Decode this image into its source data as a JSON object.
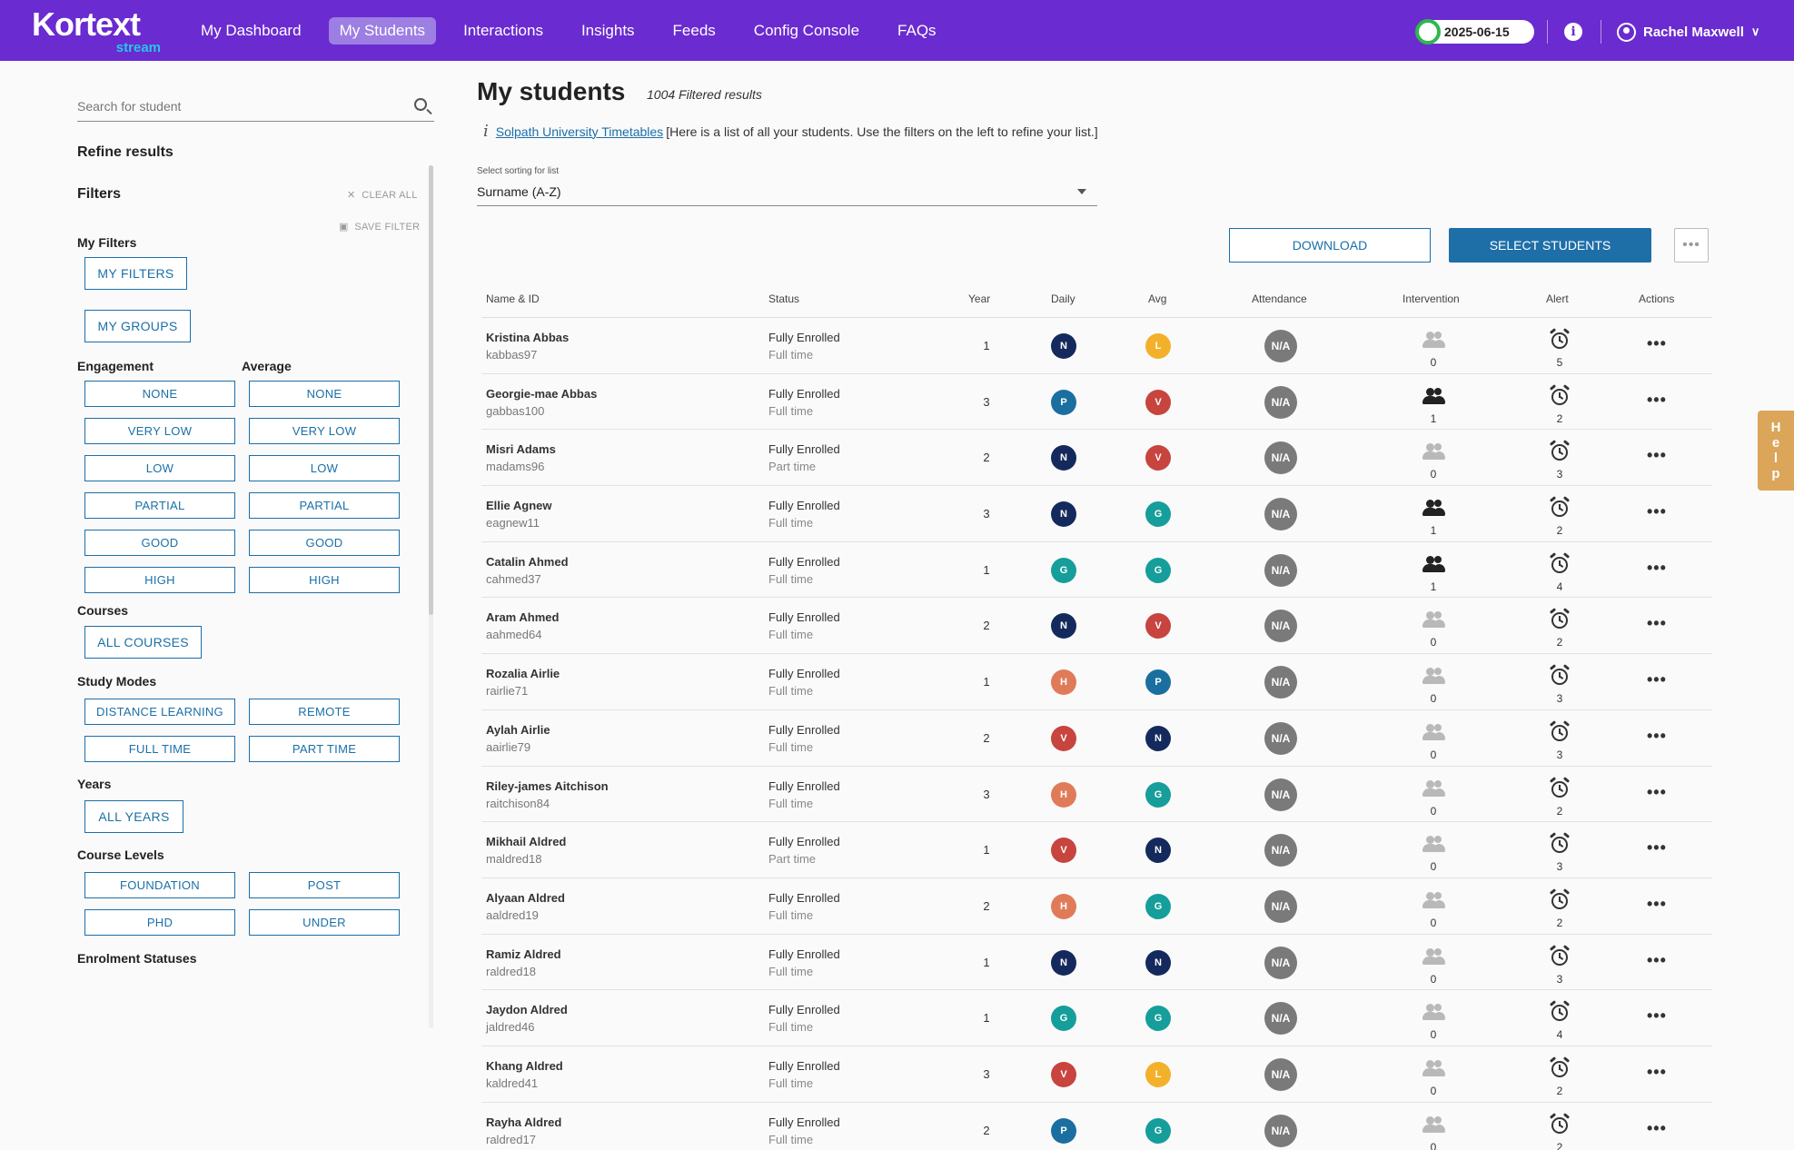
{
  "brand": {
    "name": "Kortext",
    "sub": "stream"
  },
  "nav": {
    "items": [
      {
        "label": "My Dashboard",
        "active": false
      },
      {
        "label": "My Students",
        "active": true
      },
      {
        "label": "Interactions",
        "active": false
      },
      {
        "label": "Insights",
        "active": false
      },
      {
        "label": "Feeds",
        "active": false
      },
      {
        "label": "Config Console",
        "active": false
      },
      {
        "label": "FAQs",
        "active": false
      }
    ],
    "date": "2025-06-15",
    "user": "Rachel Maxwell"
  },
  "sidebar": {
    "search_placeholder": "Search for student",
    "refine": "Refine results",
    "filters": "Filters",
    "clear_all": "CLEAR ALL",
    "save_filter": "SAVE FILTER",
    "my_filters_heading": "My Filters",
    "my_filters_btn": "MY FILTERS",
    "my_groups_btn": "MY GROUPS",
    "engagement": "Engagement",
    "average": "Average",
    "levels": [
      "NONE",
      "VERY LOW",
      "LOW",
      "PARTIAL",
      "GOOD",
      "HIGH"
    ],
    "courses": "Courses",
    "all_courses": "ALL COURSES",
    "study_modes": "Study Modes",
    "modes": [
      "DISTANCE LEARNING",
      "REMOTE",
      "FULL TIME",
      "PART TIME"
    ],
    "years": "Years",
    "all_years": "ALL YEARS",
    "course_levels": "Course Levels",
    "course_level_items": [
      "FOUNDATION",
      "POST",
      "PHD",
      "UNDER"
    ],
    "enrolment_statuses": "Enrolment Statuses"
  },
  "main": {
    "title": "My students",
    "filtered": "1004 Filtered results",
    "link": "Solpath University Timetables",
    "info": "[Here is a list of all your students. Use the filters on the left to refine your list.]",
    "sort_label": "Select sorting for list",
    "sort_value": "Surname (A-Z)",
    "download": "DOWNLOAD",
    "select_students": "SELECT STUDENTS",
    "more": "•••",
    "help": [
      "H",
      "e",
      "l",
      "p"
    ]
  },
  "table": {
    "headers": [
      "Name & ID",
      "Status",
      "Year",
      "Daily",
      "Avg",
      "Attendance",
      "Intervention",
      "Alert",
      "Actions"
    ],
    "rows": [
      {
        "name": "Kristina Abbas",
        "id": "kabbas97",
        "status": "Fully Enrolled",
        "mode": "Full time",
        "year": "1",
        "daily": "N",
        "avg": "L",
        "att": "N/A",
        "intv": "0",
        "alert": "5"
      },
      {
        "name": "Georgie-mae Abbas",
        "id": "gabbas100",
        "status": "Fully Enrolled",
        "mode": "Full time",
        "year": "3",
        "daily": "P",
        "avg": "V",
        "att": "N/A",
        "intv": "1",
        "alert": "2"
      },
      {
        "name": "Misri Adams",
        "id": "madams96",
        "status": "Fully Enrolled",
        "mode": "Part time",
        "year": "2",
        "daily": "N",
        "avg": "V",
        "att": "N/A",
        "intv": "0",
        "alert": "3"
      },
      {
        "name": "Ellie Agnew",
        "id": "eagnew11",
        "status": "Fully Enrolled",
        "mode": "Full time",
        "year": "3",
        "daily": "N",
        "avg": "G",
        "att": "N/A",
        "intv": "1",
        "alert": "2"
      },
      {
        "name": "Catalin Ahmed",
        "id": "cahmed37",
        "status": "Fully Enrolled",
        "mode": "Full time",
        "year": "1",
        "daily": "G",
        "avg": "G",
        "att": "N/A",
        "intv": "1",
        "alert": "4"
      },
      {
        "name": "Aram Ahmed",
        "id": "aahmed64",
        "status": "Fully Enrolled",
        "mode": "Full time",
        "year": "2",
        "daily": "N",
        "avg": "V",
        "att": "N/A",
        "intv": "0",
        "alert": "2"
      },
      {
        "name": "Rozalia Airlie",
        "id": "rairlie71",
        "status": "Fully Enrolled",
        "mode": "Full time",
        "year": "1",
        "daily": "H",
        "avg": "P",
        "att": "N/A",
        "intv": "0",
        "alert": "3"
      },
      {
        "name": "Aylah Airlie",
        "id": "aairlie79",
        "status": "Fully Enrolled",
        "mode": "Full time",
        "year": "2",
        "daily": "V",
        "avg": "N",
        "att": "N/A",
        "intv": "0",
        "alert": "3"
      },
      {
        "name": "Riley-james Aitchison",
        "id": "raitchison84",
        "status": "Fully Enrolled",
        "mode": "Full time",
        "year": "3",
        "daily": "H",
        "avg": "G",
        "att": "N/A",
        "intv": "0",
        "alert": "2"
      },
      {
        "name": "Mikhail Aldred",
        "id": "maldred18",
        "status": "Fully Enrolled",
        "mode": "Part time",
        "year": "1",
        "daily": "V",
        "avg": "N",
        "att": "N/A",
        "intv": "0",
        "alert": "3"
      },
      {
        "name": "Alyaan Aldred",
        "id": "aaldred19",
        "status": "Fully Enrolled",
        "mode": "Full time",
        "year": "2",
        "daily": "H",
        "avg": "G",
        "att": "N/A",
        "intv": "0",
        "alert": "2"
      },
      {
        "name": "Ramiz Aldred",
        "id": "raldred18",
        "status": "Fully Enrolled",
        "mode": "Full time",
        "year": "1",
        "daily": "N",
        "avg": "N",
        "att": "N/A",
        "intv": "0",
        "alert": "3"
      },
      {
        "name": "Jaydon Aldred",
        "id": "jaldred46",
        "status": "Fully Enrolled",
        "mode": "Full time",
        "year": "1",
        "daily": "G",
        "avg": "G",
        "att": "N/A",
        "intv": "0",
        "alert": "4"
      },
      {
        "name": "Khang Aldred",
        "id": "kaldred41",
        "status": "Fully Enrolled",
        "mode": "Full time",
        "year": "3",
        "daily": "V",
        "avg": "L",
        "att": "N/A",
        "intv": "0",
        "alert": "2"
      },
      {
        "name": "Rayha Aldred",
        "id": "raldred17",
        "status": "Fully Enrolled",
        "mode": "Full time",
        "year": "2",
        "daily": "P",
        "avg": "G",
        "att": "N/A",
        "intv": "0",
        "alert": "2"
      }
    ]
  },
  "colors": {
    "nav": "#6a2bd0",
    "primary": "#1b6fa8",
    "N": "#152a5c",
    "P": "#1a6fa0",
    "V": "#c7443f",
    "G": "#169e9a",
    "H": "#e07b5a",
    "L": "#f3b12b",
    "intv_active": "#222222",
    "intv_inactive": "#b9b9b9"
  }
}
